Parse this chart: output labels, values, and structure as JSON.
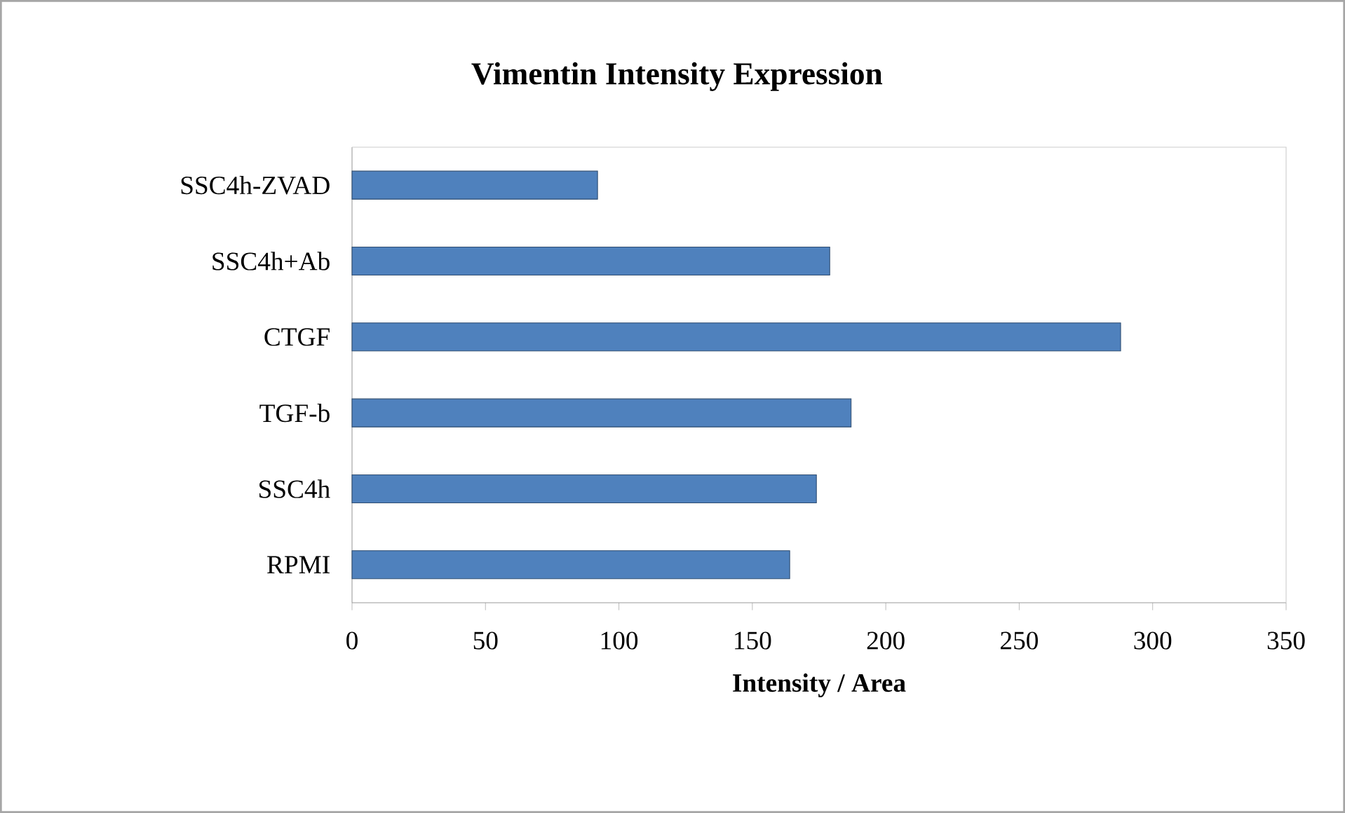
{
  "chart_data": {
    "type": "bar",
    "orientation": "horizontal",
    "title": "Vimentin Intensity Expression",
    "xlabel": "Intensity / Area",
    "categories": [
      "SSC4h-ZVAD",
      "SSC4h+Ab",
      "CTGF",
      "TGF-b",
      "SSC4h",
      "RPMI"
    ],
    "values": [
      92,
      179,
      288,
      187,
      174,
      164
    ],
    "color": "#4f81bd",
    "xlim": [
      0,
      350
    ],
    "xticks": [
      0,
      50,
      100,
      150,
      200,
      250,
      300,
      350
    ],
    "grid": false
  }
}
